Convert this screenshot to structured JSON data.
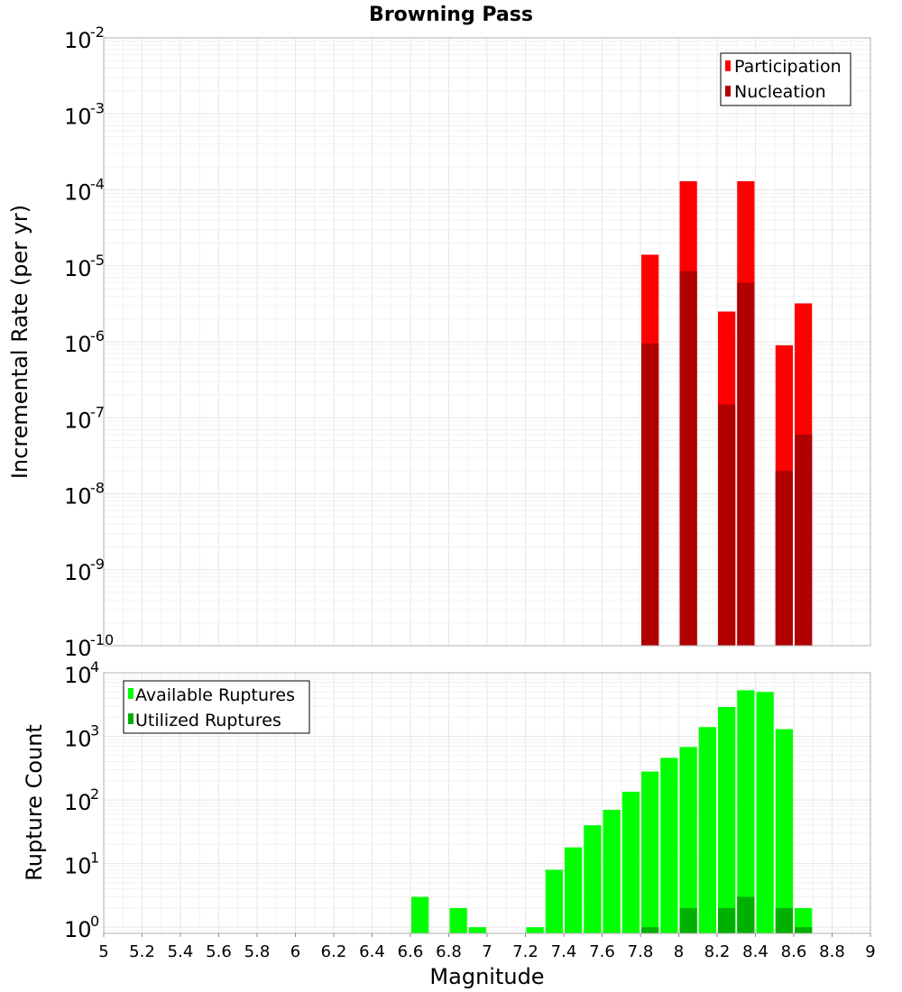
{
  "chart_data": [
    {
      "type": "bar",
      "title": "Browning Pass",
      "xlabel": "",
      "ylabel": "Incremental Rate (per yr)",
      "yscale": "log",
      "ylim": [
        1e-10,
        0.01
      ],
      "xlim": [
        5,
        9
      ],
      "bar_width": 0.1,
      "y_ticks": [
        {
          "base": "10",
          "exp": "-10",
          "value": 1e-10
        },
        {
          "base": "10",
          "exp": "-9",
          "value": 1e-09
        },
        {
          "base": "10",
          "exp": "-8",
          "value": 1e-08
        },
        {
          "base": "10",
          "exp": "-7",
          "value": 1e-07
        },
        {
          "base": "10",
          "exp": "-6",
          "value": 1e-06
        },
        {
          "base": "10",
          "exp": "-5",
          "value": 1e-05
        },
        {
          "base": "10",
          "exp": "-4",
          "value": 0.0001
        },
        {
          "base": "10",
          "exp": "-3",
          "value": 0.001
        },
        {
          "base": "10",
          "exp": "-2",
          "value": 0.01
        }
      ],
      "legend": [
        {
          "label": "Participation",
          "color": "#ff0000"
        },
        {
          "label": "Nucleation",
          "color": "#b00000"
        }
      ],
      "legend_position": "top-right",
      "series": [
        {
          "name": "Participation",
          "color": "#ff0000",
          "x": [
            7.85,
            8.05,
            8.25,
            8.35,
            8.55,
            8.65
          ],
          "values": [
            1.4e-05,
            0.00013,
            2.5e-06,
            0.00013,
            9e-07,
            3.2e-06
          ]
        },
        {
          "name": "Nucleation",
          "color": "#b00000",
          "x": [
            7.85,
            8.05,
            8.25,
            8.35,
            8.55,
            8.65
          ],
          "values": [
            9.5e-07,
            8.5e-06,
            1.5e-07,
            6e-06,
            2e-08,
            6e-08
          ]
        }
      ]
    },
    {
      "type": "bar",
      "title": "",
      "xlabel": "Magnitude",
      "ylabel": "Rupture Count",
      "yscale": "log",
      "ylim": [
        0.8,
        10000
      ],
      "xlim": [
        5,
        9
      ],
      "bar_width": 0.1,
      "x_ticks": [
        "5",
        "5.2",
        "5.4",
        "5.6",
        "5.8",
        "6",
        "6.2",
        "6.4",
        "6.6",
        "6.8",
        "7",
        "7.2",
        "7.4",
        "7.6",
        "7.8",
        "8",
        "8.2",
        "8.4",
        "8.6",
        "8.8",
        "9"
      ],
      "y_ticks": [
        {
          "base": "10",
          "exp": "0",
          "value": 1
        },
        {
          "base": "10",
          "exp": "1",
          "value": 10
        },
        {
          "base": "10",
          "exp": "2",
          "value": 100
        },
        {
          "base": "10",
          "exp": "3",
          "value": 1000
        },
        {
          "base": "10",
          "exp": "4",
          "value": 10000
        }
      ],
      "legend": [
        {
          "label": "Available Ruptures",
          "color": "#00ff00"
        },
        {
          "label": "Utilized Ruptures",
          "color": "#00b000"
        }
      ],
      "legend_position": "top-left",
      "series": [
        {
          "name": "Available Ruptures",
          "color": "#00ff00",
          "x": [
            6.65,
            6.85,
            6.95,
            7.25,
            7.35,
            7.45,
            7.55,
            7.65,
            7.75,
            7.85,
            7.95,
            8.05,
            8.15,
            8.25,
            8.35,
            8.45,
            8.55,
            8.65
          ],
          "values": [
            3,
            2,
            1,
            1,
            8,
            18,
            40,
            70,
            135,
            280,
            460,
            680,
            1400,
            2900,
            5300,
            5000,
            1300,
            2
          ]
        },
        {
          "name": "Utilized Ruptures",
          "color": "#00b000",
          "x": [
            7.85,
            8.05,
            8.25,
            8.35,
            8.55,
            8.65
          ],
          "values": [
            1,
            2,
            2,
            3,
            2,
            1
          ]
        }
      ]
    }
  ]
}
